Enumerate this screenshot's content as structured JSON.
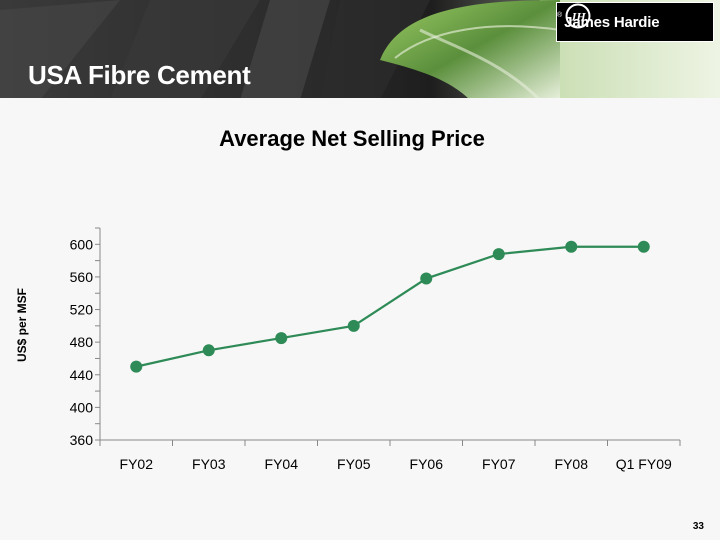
{
  "header": {
    "section_title": "USA Fibre Cement",
    "brand_name": "James Hardie",
    "brand_mark_text": "JH",
    "brand_registered": "®"
  },
  "page_number": "33",
  "colors": {
    "series": "#2e8b57",
    "header_dark": "#222222",
    "leaf_green": "#6aa84f"
  },
  "chart_data": {
    "type": "line",
    "title": "Average Net Selling Price",
    "xlabel": "",
    "ylabel": "US$ per MSF",
    "categories": [
      "FY02",
      "FY03",
      "FY04",
      "FY05",
      "FY06",
      "FY07",
      "FY08",
      "Q1 FY09"
    ],
    "series": [
      {
        "values": [
          450,
          470,
          485,
          500,
          558,
          588,
          597,
          597
        ]
      }
    ],
    "ylim": [
      360,
      620
    ],
    "yticks": [
      360,
      400,
      440,
      480,
      520,
      560,
      600
    ],
    "grid": false,
    "legend": "none",
    "marker": "circle"
  }
}
